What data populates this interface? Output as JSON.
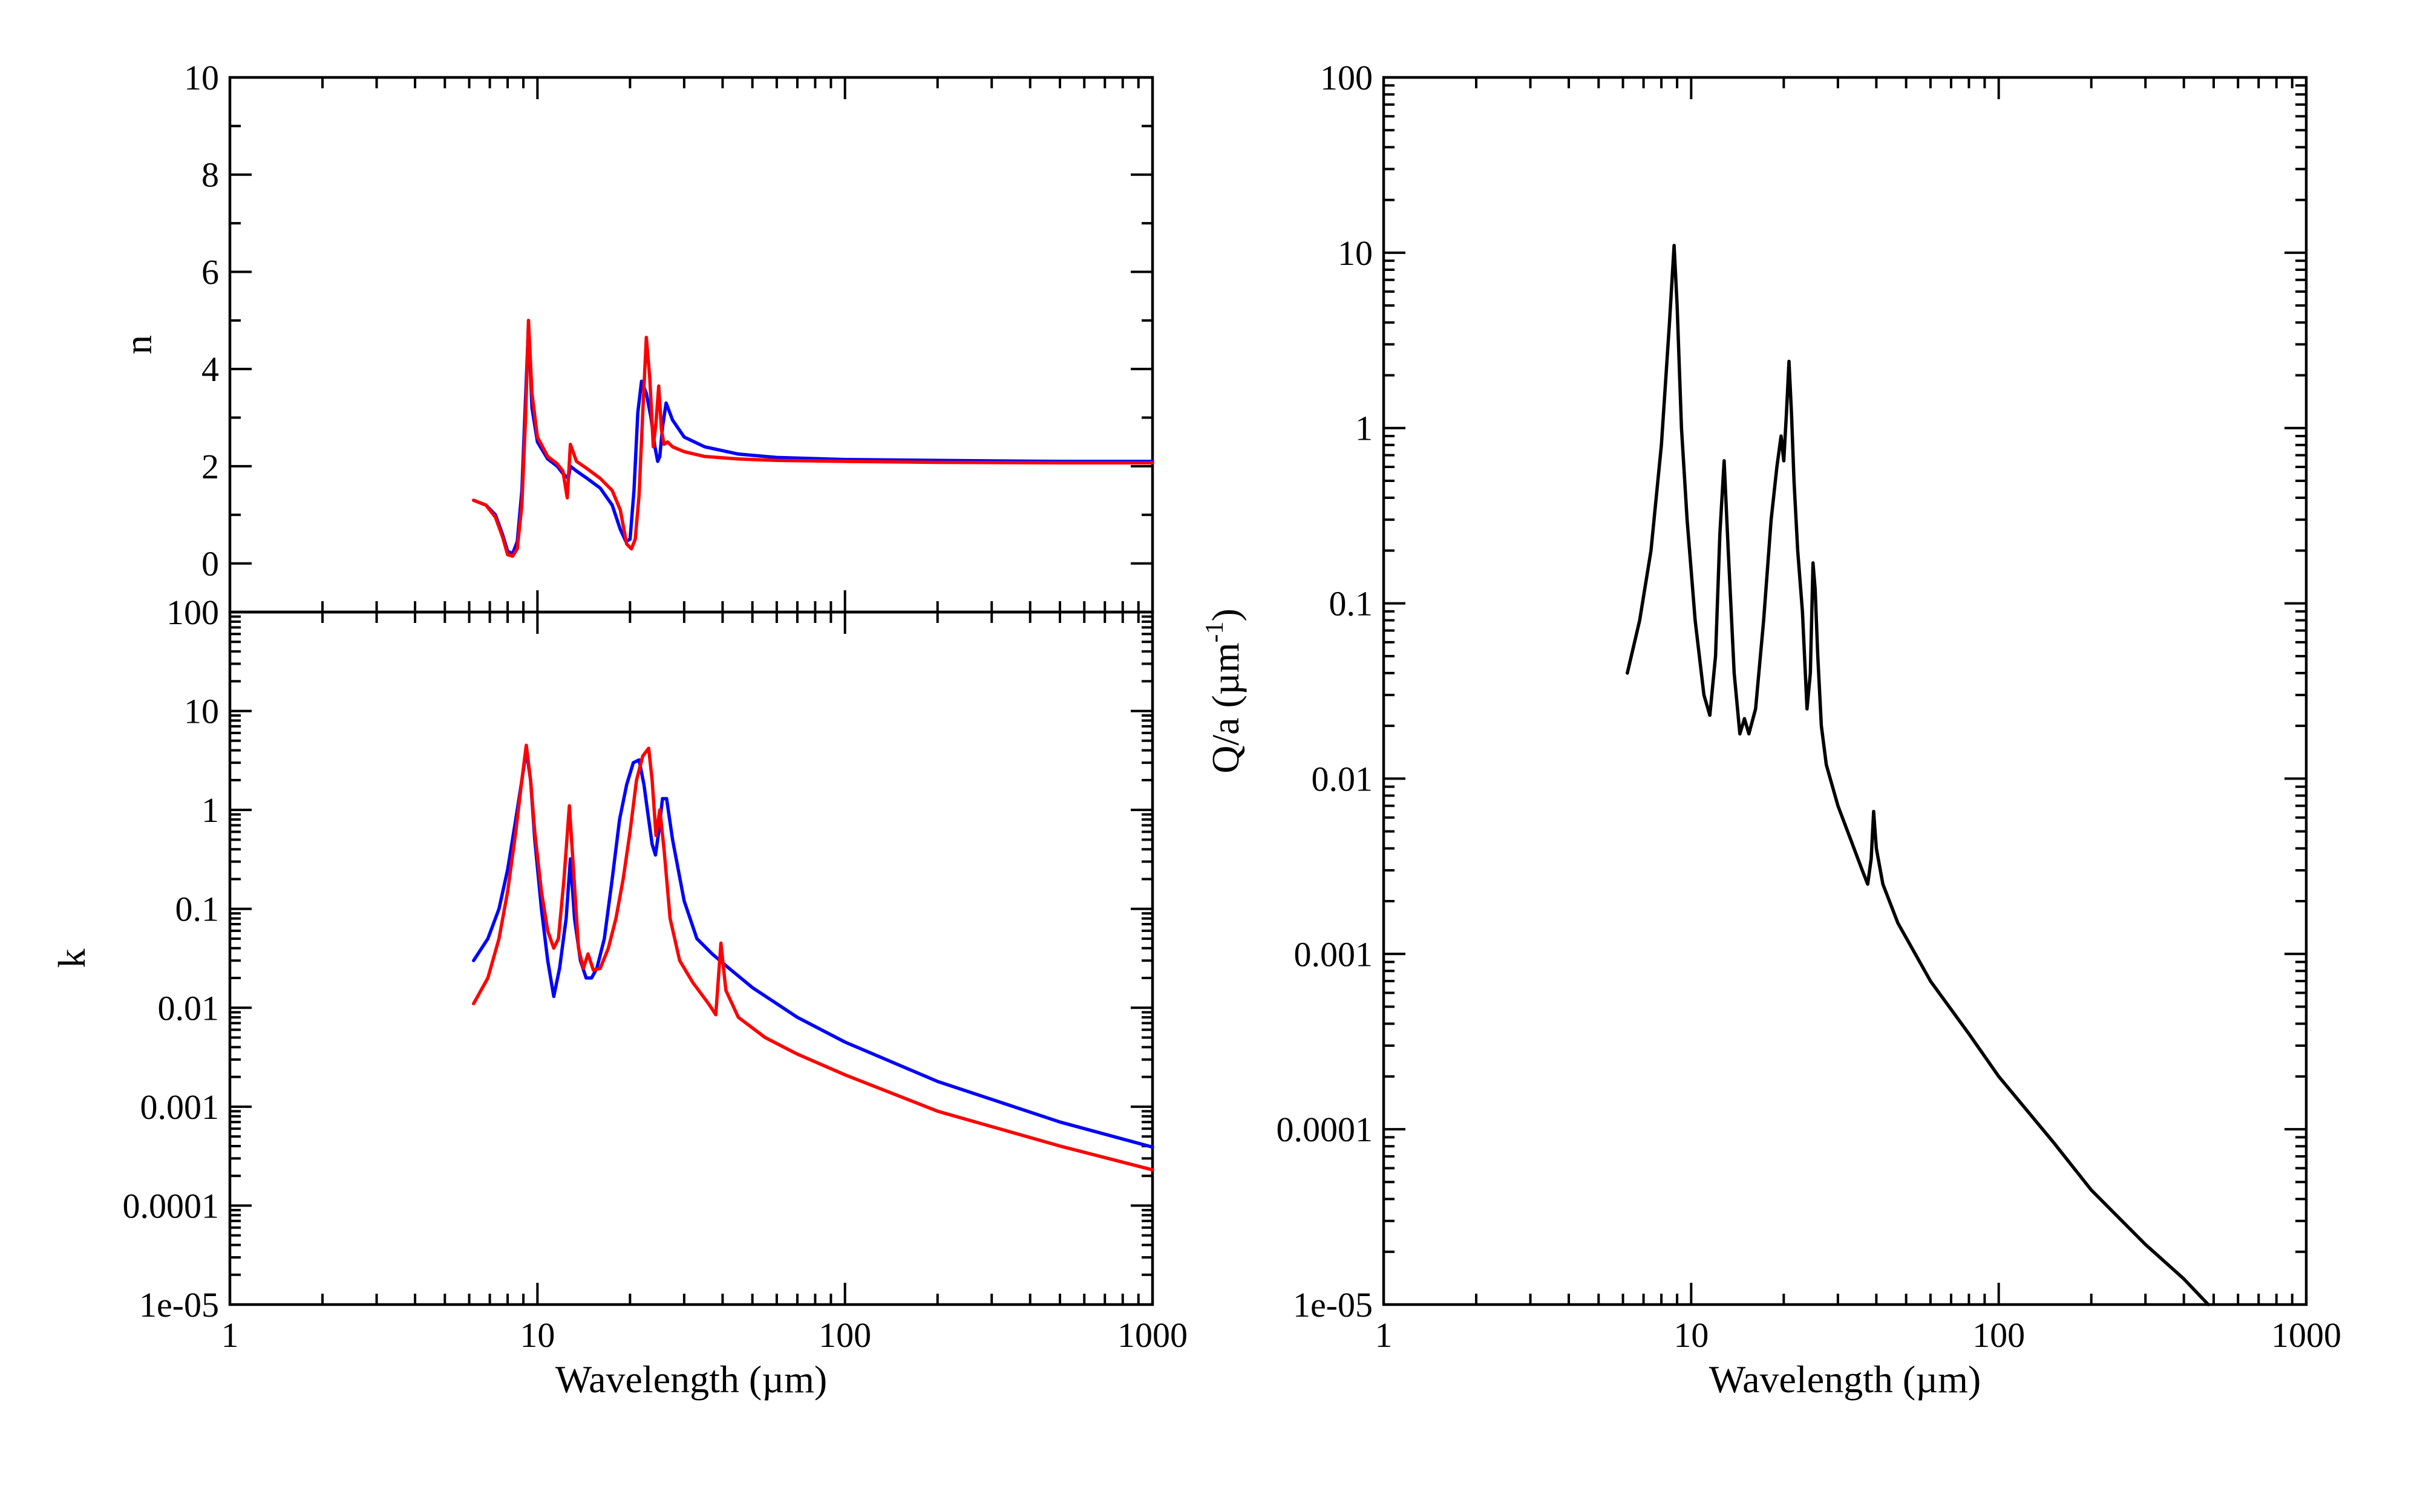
{
  "chart_data": [
    {
      "type": "line",
      "panel": "top-left",
      "xlabel": "",
      "ylabel": "n",
      "xscale": "log",
      "xlim": [
        1,
        1000
      ],
      "ylim": [
        -1,
        10
      ],
      "yticks": [
        "0",
        "2",
        "4",
        "6",
        "8",
        "10"
      ],
      "xticks": [],
      "series": [
        {
          "color": "#0000ff",
          "x": [
            6.2,
            6.8,
            7.3,
            7.7,
            8.0,
            8.3,
            8.6,
            8.9,
            9.15,
            9.35,
            9.6,
            10.0,
            10.8,
            11.6,
            12.1,
            12.6,
            12.8,
            13.4,
            14.5,
            16.0,
            17.5,
            18.6,
            19.4,
            20.0,
            20.6,
            21.2,
            21.8,
            22.6,
            23.4,
            24.1,
            24.6,
            25.0,
            25.5,
            26.2,
            27.5,
            30,
            35,
            45,
            60,
            100,
            200,
            500,
            1000
          ],
          "y": [
            1.3,
            1.2,
            1.0,
            0.6,
            0.25,
            0.2,
            0.45,
            1.5,
            3.4,
            4.9,
            3.2,
            2.5,
            2.15,
            2.0,
            1.85,
            1.75,
            2.0,
            1.9,
            1.75,
            1.55,
            1.2,
            0.7,
            0.45,
            0.5,
            1.5,
            3.1,
            3.75,
            3.5,
            3.0,
            2.4,
            2.1,
            2.2,
            2.8,
            3.3,
            2.95,
            2.6,
            2.4,
            2.25,
            2.18,
            2.14,
            2.12,
            2.1,
            2.1
          ]
        },
        {
          "color": "#ff0000",
          "x": [
            6.2,
            6.8,
            7.3,
            7.7,
            8.0,
            8.3,
            8.6,
            8.9,
            9.15,
            9.35,
            9.6,
            10.0,
            10.8,
            11.6,
            12.1,
            12.5,
            12.8,
            13.4,
            14.5,
            16.0,
            17.5,
            18.6,
            19.5,
            20.2,
            20.8,
            21.4,
            22.0,
            22.6,
            23.2,
            23.8,
            24.3,
            24.8,
            25.3,
            25.8,
            26.5,
            27.5,
            30,
            35,
            45,
            60,
            100,
            200,
            500,
            1000
          ],
          "y": [
            1.3,
            1.2,
            0.95,
            0.55,
            0.18,
            0.15,
            0.3,
            1.2,
            3.0,
            5.0,
            3.5,
            2.6,
            2.2,
            2.05,
            1.9,
            1.35,
            2.45,
            2.1,
            1.95,
            1.75,
            1.5,
            1.1,
            0.4,
            0.3,
            0.5,
            1.4,
            3.1,
            4.65,
            3.8,
            2.4,
            2.9,
            3.65,
            2.75,
            2.45,
            2.5,
            2.4,
            2.3,
            2.2,
            2.15,
            2.12,
            2.1,
            2.08,
            2.07,
            2.07
          ]
        }
      ]
    },
    {
      "type": "line",
      "panel": "bottom-left",
      "xlabel": "Wavelength (µm)",
      "ylabel": "k",
      "xscale": "log",
      "yscale": "log",
      "xlim": [
        1,
        1000
      ],
      "ylim": [
        1e-05,
        100
      ],
      "yticks": [
        "1e-05",
        "0.0001",
        "0.001",
        "0.01",
        "0.1",
        "1",
        "10",
        "100"
      ],
      "xticks": [
        "1",
        "10",
        "100",
        "1000"
      ],
      "series": [
        {
          "color": "#0000ff",
          "x": [
            6.2,
            6.9,
            7.5,
            8.0,
            8.5,
            8.9,
            9.2,
            9.5,
            9.8,
            10.3,
            10.8,
            11.3,
            11.8,
            12.4,
            12.8,
            13.2,
            13.8,
            14.4,
            15.0,
            15.6,
            16.5,
            17.5,
            18.5,
            19.5,
            20.5,
            21.4,
            22.2,
            23.0,
            23.6,
            24.2,
            24.8,
            25.5,
            26.3,
            27.5,
            30,
            33,
            37,
            42,
            50,
            70,
            100,
            200,
            500,
            1000
          ],
          "y": [
            0.03,
            0.05,
            0.1,
            0.25,
            0.8,
            2.0,
            4.0,
            2.0,
            0.5,
            0.1,
            0.03,
            0.013,
            0.025,
            0.08,
            0.32,
            0.08,
            0.03,
            0.02,
            0.02,
            0.025,
            0.05,
            0.2,
            0.8,
            1.8,
            3.0,
            3.2,
            1.8,
            0.8,
            0.45,
            0.35,
            0.6,
            1.3,
            1.3,
            0.5,
            0.12,
            0.05,
            0.035,
            0.025,
            0.016,
            0.008,
            0.0045,
            0.0018,
            0.0007,
            0.00039
          ]
        },
        {
          "color": "#ff0000",
          "x": [
            6.2,
            6.9,
            7.5,
            8.0,
            8.5,
            8.9,
            9.2,
            9.5,
            9.8,
            10.3,
            10.8,
            11.3,
            11.7,
            12.2,
            12.7,
            13.1,
            13.6,
            14.1,
            14.6,
            15.2,
            16.0,
            17.0,
            18.0,
            19.0,
            20.0,
            21.0,
            22.0,
            23.0,
            23.6,
            24.3,
            25.0,
            25.8,
            27.0,
            29.0,
            32,
            36,
            38.0,
            39.5,
            41.0,
            45,
            55,
            70,
            100,
            200,
            500,
            1000
          ],
          "y": [
            0.011,
            0.02,
            0.05,
            0.15,
            0.6,
            2.0,
            4.5,
            2.0,
            0.6,
            0.15,
            0.06,
            0.04,
            0.05,
            0.2,
            1.1,
            0.25,
            0.04,
            0.025,
            0.035,
            0.024,
            0.025,
            0.04,
            0.08,
            0.2,
            0.6,
            2.0,
            3.5,
            4.2,
            2.0,
            0.55,
            1.0,
            0.4,
            0.08,
            0.03,
            0.018,
            0.011,
            0.0085,
            0.045,
            0.015,
            0.008,
            0.005,
            0.0034,
            0.0021,
            0.0009,
            0.0004,
            0.00023
          ]
        }
      ]
    },
    {
      "type": "line",
      "panel": "right",
      "xlabel": "Wavelength (µm)",
      "ylabel": "Q/a (µm",
      "ylabel_sup": "-1",
      "ylabel_end": ")",
      "xscale": "log",
      "yscale": "log",
      "xlim": [
        1,
        1000
      ],
      "ylim": [
        1e-05,
        100
      ],
      "yticks": [
        "1e-05",
        "0.0001",
        "0.001",
        "0.01",
        "0.1",
        "1",
        "10",
        "100"
      ],
      "xticks": [
        "1",
        "10",
        "100",
        "1000"
      ],
      "series": [
        {
          "color": "#000000",
          "x": [
            6.2,
            6.8,
            7.4,
            8.0,
            8.5,
            8.8,
            9.0,
            9.3,
            9.7,
            10.3,
            11.0,
            11.5,
            12.0,
            12.4,
            12.8,
            13.2,
            13.8,
            14.4,
            14.9,
            15.4,
            16.2,
            17.2,
            18.2,
            19.0,
            19.6,
            20.0,
            20.4,
            20.8,
            21.2,
            21.6,
            22.2,
            23.0,
            23.8,
            24.4,
            24.9,
            25.3,
            25.8,
            26.5,
            27.5,
            30,
            33,
            36,
            37.5,
            38.5,
            39.2,
            40.0,
            42,
            47,
            60,
            80,
            100,
            150,
            200,
            300,
            400,
            480
          ],
          "y": [
            0.04,
            0.08,
            0.2,
            0.8,
            4.0,
            11.0,
            5.0,
            1.0,
            0.3,
            0.08,
            0.03,
            0.023,
            0.05,
            0.25,
            0.65,
            0.2,
            0.04,
            0.018,
            0.022,
            0.018,
            0.025,
            0.08,
            0.3,
            0.6,
            0.9,
            0.65,
            1.2,
            2.4,
            1.2,
            0.5,
            0.2,
            0.09,
            0.025,
            0.04,
            0.17,
            0.12,
            0.05,
            0.02,
            0.012,
            0.007,
            0.0045,
            0.003,
            0.0025,
            0.0035,
            0.0065,
            0.004,
            0.0025,
            0.0015,
            0.0007,
            0.00035,
            0.0002,
            8.5e-05,
            4.5e-05,
            2.2e-05,
            1.4e-05,
            1e-05
          ]
        }
      ]
    }
  ]
}
